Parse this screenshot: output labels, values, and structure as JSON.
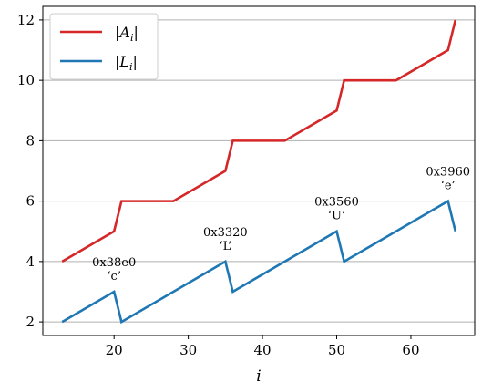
{
  "chart_data": {
    "type": "line",
    "xlabel": "i",
    "ylabel": "",
    "xlim": [
      10.4,
      68.6
    ],
    "ylim": [
      1.55,
      12.45
    ],
    "xticks": [
      20,
      30,
      40,
      50,
      60
    ],
    "yticks": [
      2,
      4,
      6,
      8,
      10,
      12
    ],
    "grid": "horizontal",
    "legend_position": "top-left",
    "series": [
      {
        "name": "|A_i|",
        "color": "#d62728",
        "points": [
          [
            13,
            4
          ],
          [
            20,
            5
          ],
          [
            21,
            6
          ],
          [
            28,
            6
          ],
          [
            35,
            7
          ],
          [
            36,
            8
          ],
          [
            43,
            8
          ],
          [
            50,
            9
          ],
          [
            51,
            10
          ],
          [
            58,
            10
          ],
          [
            65,
            11
          ],
          [
            66,
            12
          ]
        ]
      },
      {
        "name": "|L_i|",
        "color": "#1f77b4",
        "points": [
          [
            13,
            2
          ],
          [
            20,
            3
          ],
          [
            21,
            2
          ],
          [
            35,
            4
          ],
          [
            36,
            3
          ],
          [
            50,
            5
          ],
          [
            51,
            4
          ],
          [
            65,
            6
          ],
          [
            66,
            5
          ]
        ]
      }
    ],
    "annotations": [
      {
        "x": 20,
        "y": 3,
        "line1": "0x38e0",
        "line2": "‘c’"
      },
      {
        "x": 35,
        "y": 4,
        "line1": "0x3320",
        "line2": "‘L’"
      },
      {
        "x": 50,
        "y": 5,
        "line1": "0x3560",
        "line2": "‘U’"
      },
      {
        "x": 65,
        "y": 6,
        "line1": "0x3960",
        "line2": "‘e’"
      }
    ]
  }
}
